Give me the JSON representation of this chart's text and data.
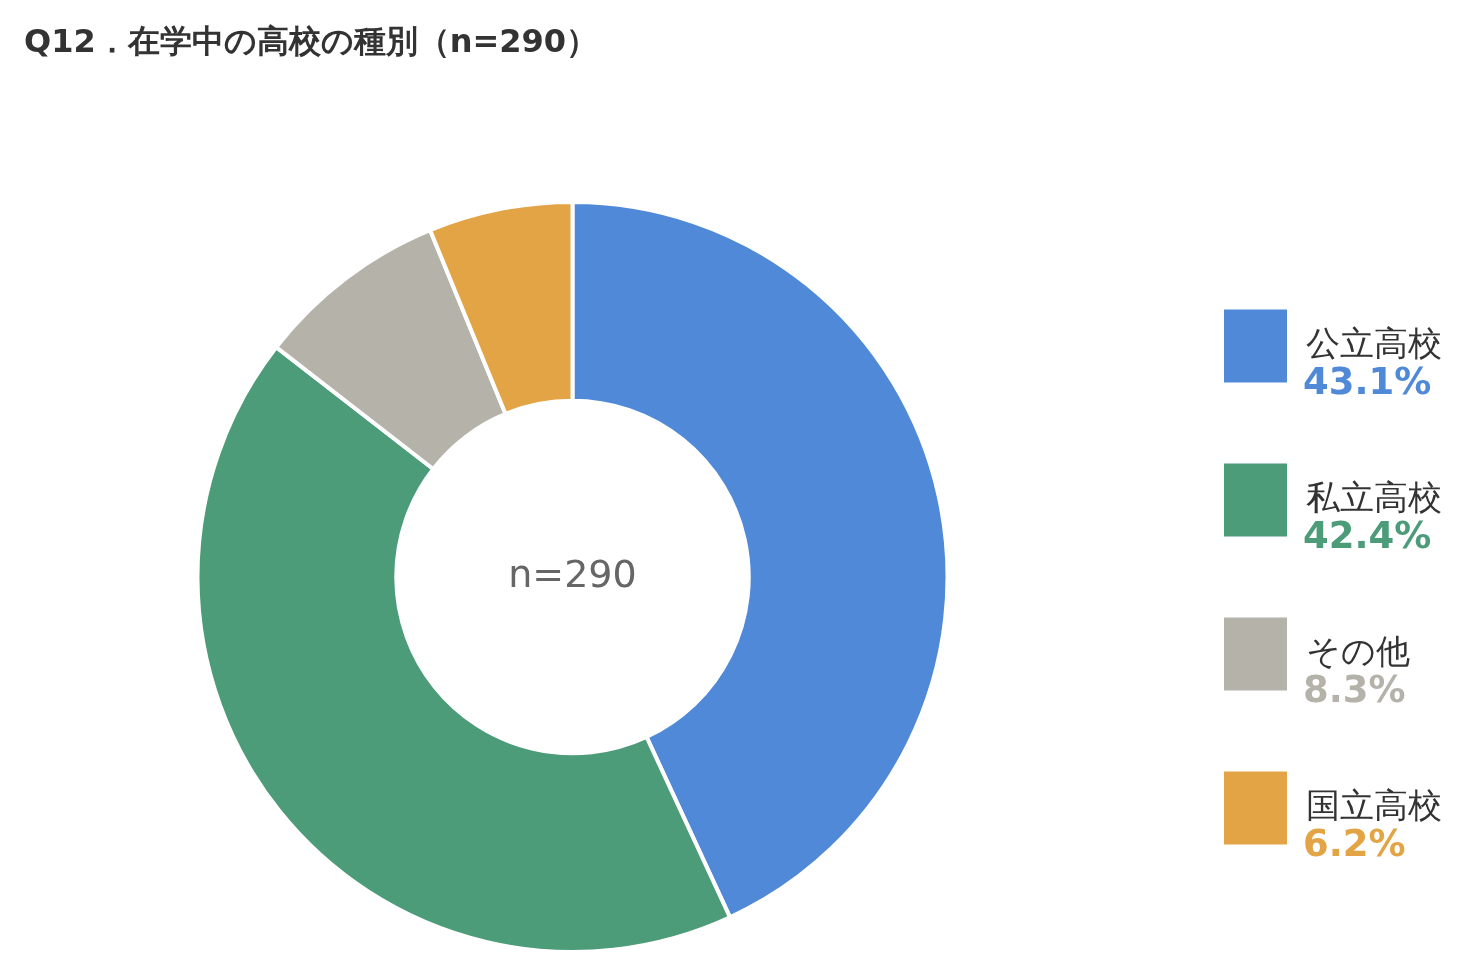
{
  "chart_data": {
    "type": "donut",
    "title": "Q12．在学中の高校の種別（n=290）",
    "categories": [
      "公立高校",
      "私立高校",
      "その他",
      "国立高校"
    ],
    "values": [
      43.1,
      42.4,
      8.3,
      6.2
    ],
    "value_labels": [
      "43.1%",
      "42.4%",
      "8.3%",
      "6.2%"
    ],
    "colors": [
      "#4f89d8",
      "#4c9b79",
      "#b5b2aa",
      "#e3a445"
    ],
    "annotations": [
      "n=290"
    ],
    "legend": "right"
  }
}
